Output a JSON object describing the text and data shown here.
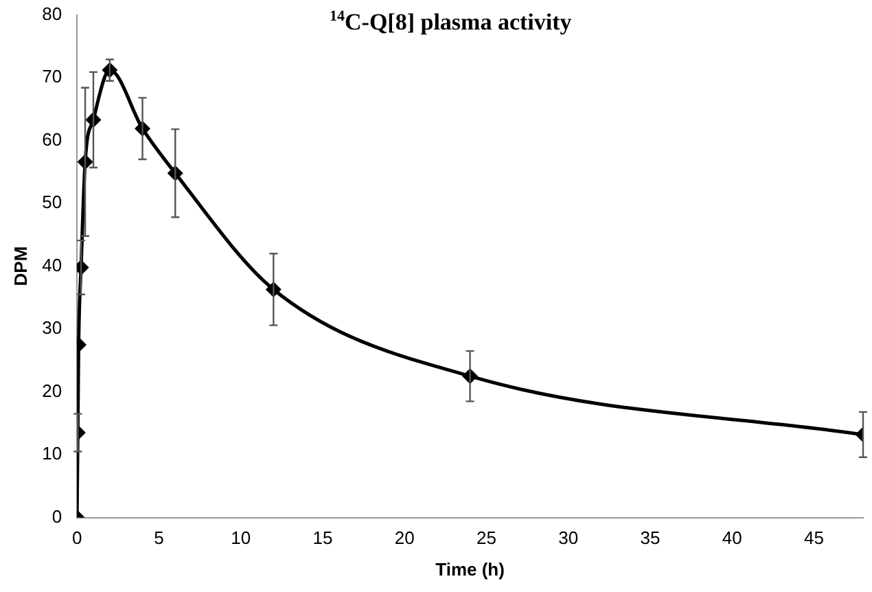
{
  "chart_data": {
    "type": "line",
    "title": "$^{14}$C-Q[8] plasma activity",
    "xlabel": "Time (h)",
    "ylabel": "DPM",
    "x": [
      0,
      0.05,
      0.1,
      0.25,
      0.5,
      1,
      2,
      4,
      6,
      12,
      24,
      48
    ],
    "values": [
      0,
      13.5,
      27.5,
      39.8,
      56.6,
      63.3,
      71.2,
      61.9,
      54.8,
      36.3,
      22.5,
      13.2
    ],
    "errors": [
      null,
      3,
      null,
      4.3,
      11.8,
      7.6,
      1.7,
      4.9,
      7,
      5.7,
      4,
      3.6
    ],
    "color": "#000000",
    "marker": "diamond",
    "line_style": "solid",
    "grid": false,
    "legend": false,
    "xlim": [
      0,
      48
    ],
    "xticks": [
      0,
      5,
      10,
      15,
      20,
      25,
      30,
      35,
      40,
      45
    ],
    "ylim": [
      0,
      80
    ],
    "yticks": [
      0,
      10,
      20,
      30,
      40,
      50,
      60,
      70,
      80
    ]
  }
}
